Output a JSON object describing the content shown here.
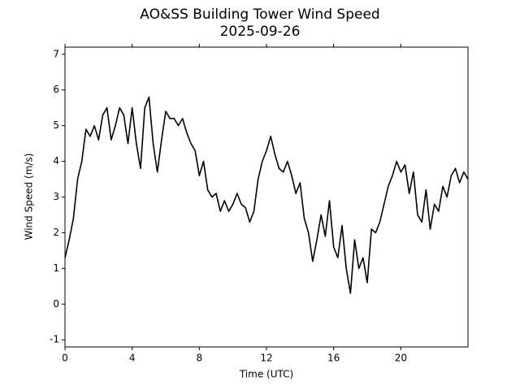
{
  "chart_data": {
    "type": "line",
    "title": "AO&SS Building Tower Wind Speed",
    "subtitle": "2025-09-26",
    "xlabel": "Time (UTC)",
    "ylabel": "Wind Speed (m/s)",
    "xlim": [
      0,
      24
    ],
    "ylim": [
      -1.2,
      7.2
    ],
    "xticks": [
      0,
      4,
      8,
      12,
      16,
      20
    ],
    "yticks": [
      -1,
      0,
      1,
      2,
      3,
      4,
      5,
      6,
      7
    ],
    "grid": false,
    "x": [
      0,
      0.25,
      0.5,
      0.75,
      1,
      1.25,
      1.5,
      1.75,
      2,
      2.25,
      2.5,
      2.75,
      3,
      3.25,
      3.5,
      3.75,
      4,
      4.25,
      4.5,
      4.75,
      5,
      5.25,
      5.5,
      5.75,
      6,
      6.25,
      6.5,
      6.75,
      7,
      7.25,
      7.5,
      7.75,
      8,
      8.25,
      8.5,
      8.75,
      9,
      9.25,
      9.5,
      9.75,
      10,
      10.25,
      10.5,
      10.75,
      11,
      11.25,
      11.5,
      11.75,
      12,
      12.25,
      12.5,
      12.75,
      13,
      13.25,
      13.5,
      13.75,
      14,
      14.25,
      14.5,
      14.75,
      15,
      15.25,
      15.5,
      15.75,
      16,
      16.25,
      16.5,
      16.75,
      17,
      17.25,
      17.5,
      17.75,
      18,
      18.25,
      18.5,
      18.75,
      19,
      19.25,
      19.5,
      19.75,
      20,
      20.25,
      20.5,
      20.75,
      21,
      21.25,
      21.5,
      21.75,
      22,
      22.25,
      22.5,
      22.75,
      23,
      23.25,
      23.5,
      23.75,
      24
    ],
    "series": [
      {
        "color": "#000000",
        "values": [
          1.3,
          1.8,
          2.4,
          3.5,
          4.0,
          4.9,
          4.7,
          5.0,
          4.6,
          5.3,
          5.5,
          4.6,
          5.0,
          5.5,
          5.3,
          4.5,
          5.5,
          4.5,
          3.8,
          5.5,
          5.8,
          4.5,
          3.7,
          4.6,
          5.4,
          5.2,
          5.2,
          5.0,
          5.2,
          4.8,
          4.5,
          4.3,
          3.6,
          4.0,
          3.2,
          3.0,
          3.1,
          2.6,
          2.9,
          2.6,
          2.8,
          3.1,
          2.8,
          2.7,
          2.3,
          2.6,
          3.5,
          4.0,
          4.3,
          4.7,
          4.2,
          3.8,
          3.7,
          4.0,
          3.6,
          3.1,
          3.4,
          2.4,
          2.0,
          1.2,
          1.8,
          2.5,
          1.9,
          2.9,
          1.6,
          1.3,
          2.2,
          1.0,
          0.3,
          1.8,
          1.0,
          1.3,
          0.6,
          2.1,
          2.0,
          2.3,
          2.8,
          3.3,
          3.6,
          4.0,
          3.7,
          3.9,
          3.1,
          3.7,
          2.5,
          2.3,
          3.2,
          2.1,
          2.8,
          2.6,
          3.3,
          3.0,
          3.6,
          3.8,
          3.4,
          3.7,
          3.5
        ]
      }
    ]
  }
}
